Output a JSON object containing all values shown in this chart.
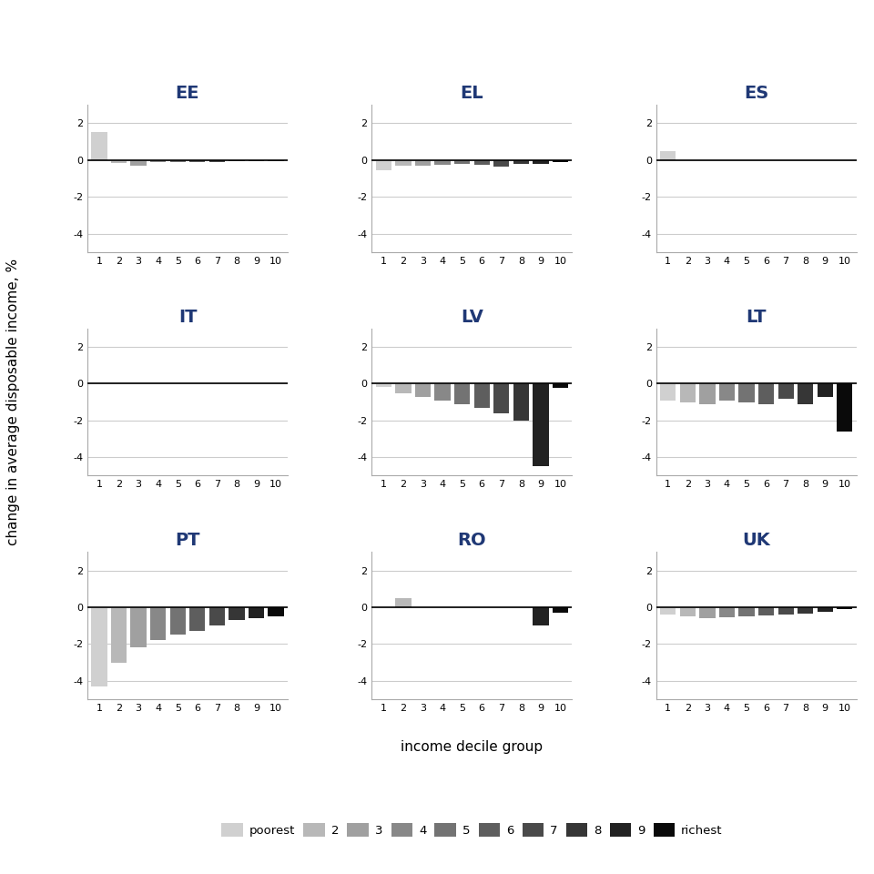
{
  "countries": [
    "EE",
    "EL",
    "ES",
    "IT",
    "LV",
    "LT",
    "PT",
    "RO",
    "UK"
  ],
  "title_color": "#1f3875",
  "bar_colors": [
    "#d0d0d0",
    "#b8b8b8",
    "#a0a0a0",
    "#888888",
    "#737373",
    "#5e5e5e",
    "#4a4a4a",
    "#363636",
    "#222222",
    "#0a0a0a"
  ],
  "legend_labels": [
    "poorest",
    "2",
    "3",
    "4",
    "5",
    "6",
    "7",
    "8",
    "9",
    "richest"
  ],
  "ylabel": "change in average disposable income, %",
  "xlabel": "income decile group",
  "ylim": [
    -5,
    3
  ],
  "yticks": [
    2,
    0,
    -2,
    -4
  ],
  "data": {
    "EE": [
      1.5,
      -0.15,
      -0.3,
      -0.1,
      -0.1,
      -0.1,
      -0.12,
      -0.08,
      -0.05,
      -0.05
    ],
    "EL": [
      -0.55,
      -0.3,
      -0.3,
      -0.25,
      -0.2,
      -0.25,
      -0.35,
      -0.2,
      -0.2,
      -0.12
    ],
    "ES": [
      0.5,
      0.0,
      0.0,
      0.0,
      0.0,
      0.0,
      0.0,
      0.0,
      0.0,
      0.0
    ],
    "IT": [
      0.0,
      0.0,
      0.0,
      0.0,
      0.0,
      0.0,
      0.0,
      0.0,
      0.0,
      0.0
    ],
    "LV": [
      -0.2,
      -0.5,
      -0.7,
      -0.9,
      -1.1,
      -1.3,
      -1.6,
      -2.0,
      -4.5,
      -0.25
    ],
    "LT": [
      -0.9,
      -1.0,
      -1.1,
      -0.9,
      -1.0,
      -1.1,
      -0.8,
      -1.1,
      -0.7,
      -2.6
    ],
    "PT": [
      -4.3,
      -3.0,
      -2.2,
      -1.8,
      -1.5,
      -1.3,
      -1.0,
      -0.7,
      -0.6,
      -0.5
    ],
    "RO": [
      0.0,
      0.5,
      0.0,
      0.0,
      0.0,
      0.0,
      0.0,
      0.0,
      -1.0,
      -0.3
    ],
    "UK": [
      -0.4,
      -0.5,
      -0.6,
      -0.55,
      -0.5,
      -0.45,
      -0.4,
      -0.35,
      -0.25,
      -0.1
    ]
  },
  "background_color": "#ffffff",
  "grid_color": "#cccccc",
  "zero_line_color": "#000000"
}
